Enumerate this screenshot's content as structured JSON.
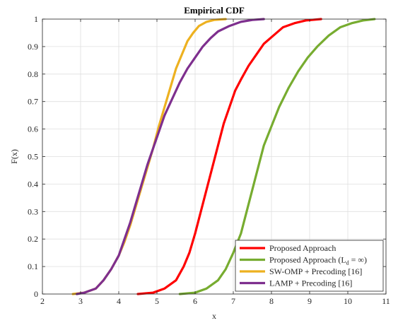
{
  "chart_data": {
    "type": "line",
    "title": "Empirical CDF",
    "xlabel": "x",
    "ylabel": "F(x)",
    "xlim": [
      2,
      11
    ],
    "ylim": [
      0,
      1
    ],
    "x_ticks": [
      "2",
      "3",
      "4",
      "5",
      "6",
      "7",
      "8",
      "9",
      "10",
      "11"
    ],
    "y_ticks": [
      "0",
      "0.1",
      "0.2",
      "0.3",
      "0.4",
      "0.5",
      "0.6",
      "0.7",
      "0.8",
      "0.9",
      "1"
    ],
    "grid": true,
    "legend_position": "bottom-right",
    "series": [
      {
        "name": "Proposed Approach",
        "color": "#ff0000",
        "x": [
          4.5,
          4.9,
          5.2,
          5.5,
          5.7,
          5.85,
          6.0,
          6.15,
          6.3,
          6.45,
          6.6,
          6.75,
          6.9,
          7.05,
          7.2,
          7.4,
          7.6,
          7.8,
          8.05,
          8.3,
          8.6,
          8.9,
          9.3
        ],
        "y": [
          0,
          0.005,
          0.02,
          0.05,
          0.1,
          0.15,
          0.22,
          0.3,
          0.38,
          0.46,
          0.54,
          0.62,
          0.68,
          0.74,
          0.78,
          0.83,
          0.87,
          0.91,
          0.94,
          0.97,
          0.985,
          0.995,
          1.0
        ]
      },
      {
        "name": "Proposed Approach (L_d = ∞)",
        "name_parts": {
          "prefix": "Proposed Approach (L",
          "subscript": "d",
          "suffix": " = ∞)"
        },
        "color": "#77ac30",
        "x": [
          5.6,
          6.0,
          6.3,
          6.6,
          6.8,
          7.0,
          7.2,
          7.35,
          7.5,
          7.65,
          7.8,
          8.0,
          8.2,
          8.45,
          8.7,
          8.95,
          9.2,
          9.5,
          9.8,
          10.1,
          10.4,
          10.7
        ],
        "y": [
          0,
          0.005,
          0.02,
          0.05,
          0.09,
          0.15,
          0.22,
          0.3,
          0.38,
          0.46,
          0.54,
          0.61,
          0.68,
          0.75,
          0.81,
          0.86,
          0.9,
          0.94,
          0.97,
          0.985,
          0.995,
          1.0
        ]
      },
      {
        "name": "SW-OMP + Precoding [16]",
        "color": "#edb120",
        "x": [
          2.8,
          3.1,
          3.4,
          3.6,
          3.8,
          4.0,
          4.15,
          4.3,
          4.45,
          4.6,
          4.75,
          4.9,
          5.05,
          5.2,
          5.35,
          5.5,
          5.65,
          5.8,
          5.95,
          6.1,
          6.3,
          6.5,
          6.8
        ],
        "y": [
          0,
          0.005,
          0.02,
          0.05,
          0.09,
          0.14,
          0.19,
          0.25,
          0.32,
          0.39,
          0.46,
          0.53,
          0.61,
          0.68,
          0.75,
          0.82,
          0.87,
          0.92,
          0.95,
          0.975,
          0.99,
          0.997,
          1.0
        ]
      },
      {
        "name": "LAMP + Precoding [16]",
        "color": "#7e2f8e",
        "x": [
          2.9,
          3.1,
          3.4,
          3.6,
          3.8,
          4.0,
          4.15,
          4.3,
          4.45,
          4.6,
          4.75,
          4.9,
          5.05,
          5.2,
          5.4,
          5.6,
          5.8,
          6.0,
          6.2,
          6.4,
          6.6,
          6.9,
          7.2,
          7.5,
          7.8
        ],
        "y": [
          0,
          0.005,
          0.02,
          0.05,
          0.09,
          0.14,
          0.2,
          0.26,
          0.33,
          0.4,
          0.47,
          0.53,
          0.59,
          0.65,
          0.71,
          0.77,
          0.82,
          0.86,
          0.9,
          0.93,
          0.955,
          0.975,
          0.99,
          0.997,
          1.0
        ]
      }
    ]
  }
}
